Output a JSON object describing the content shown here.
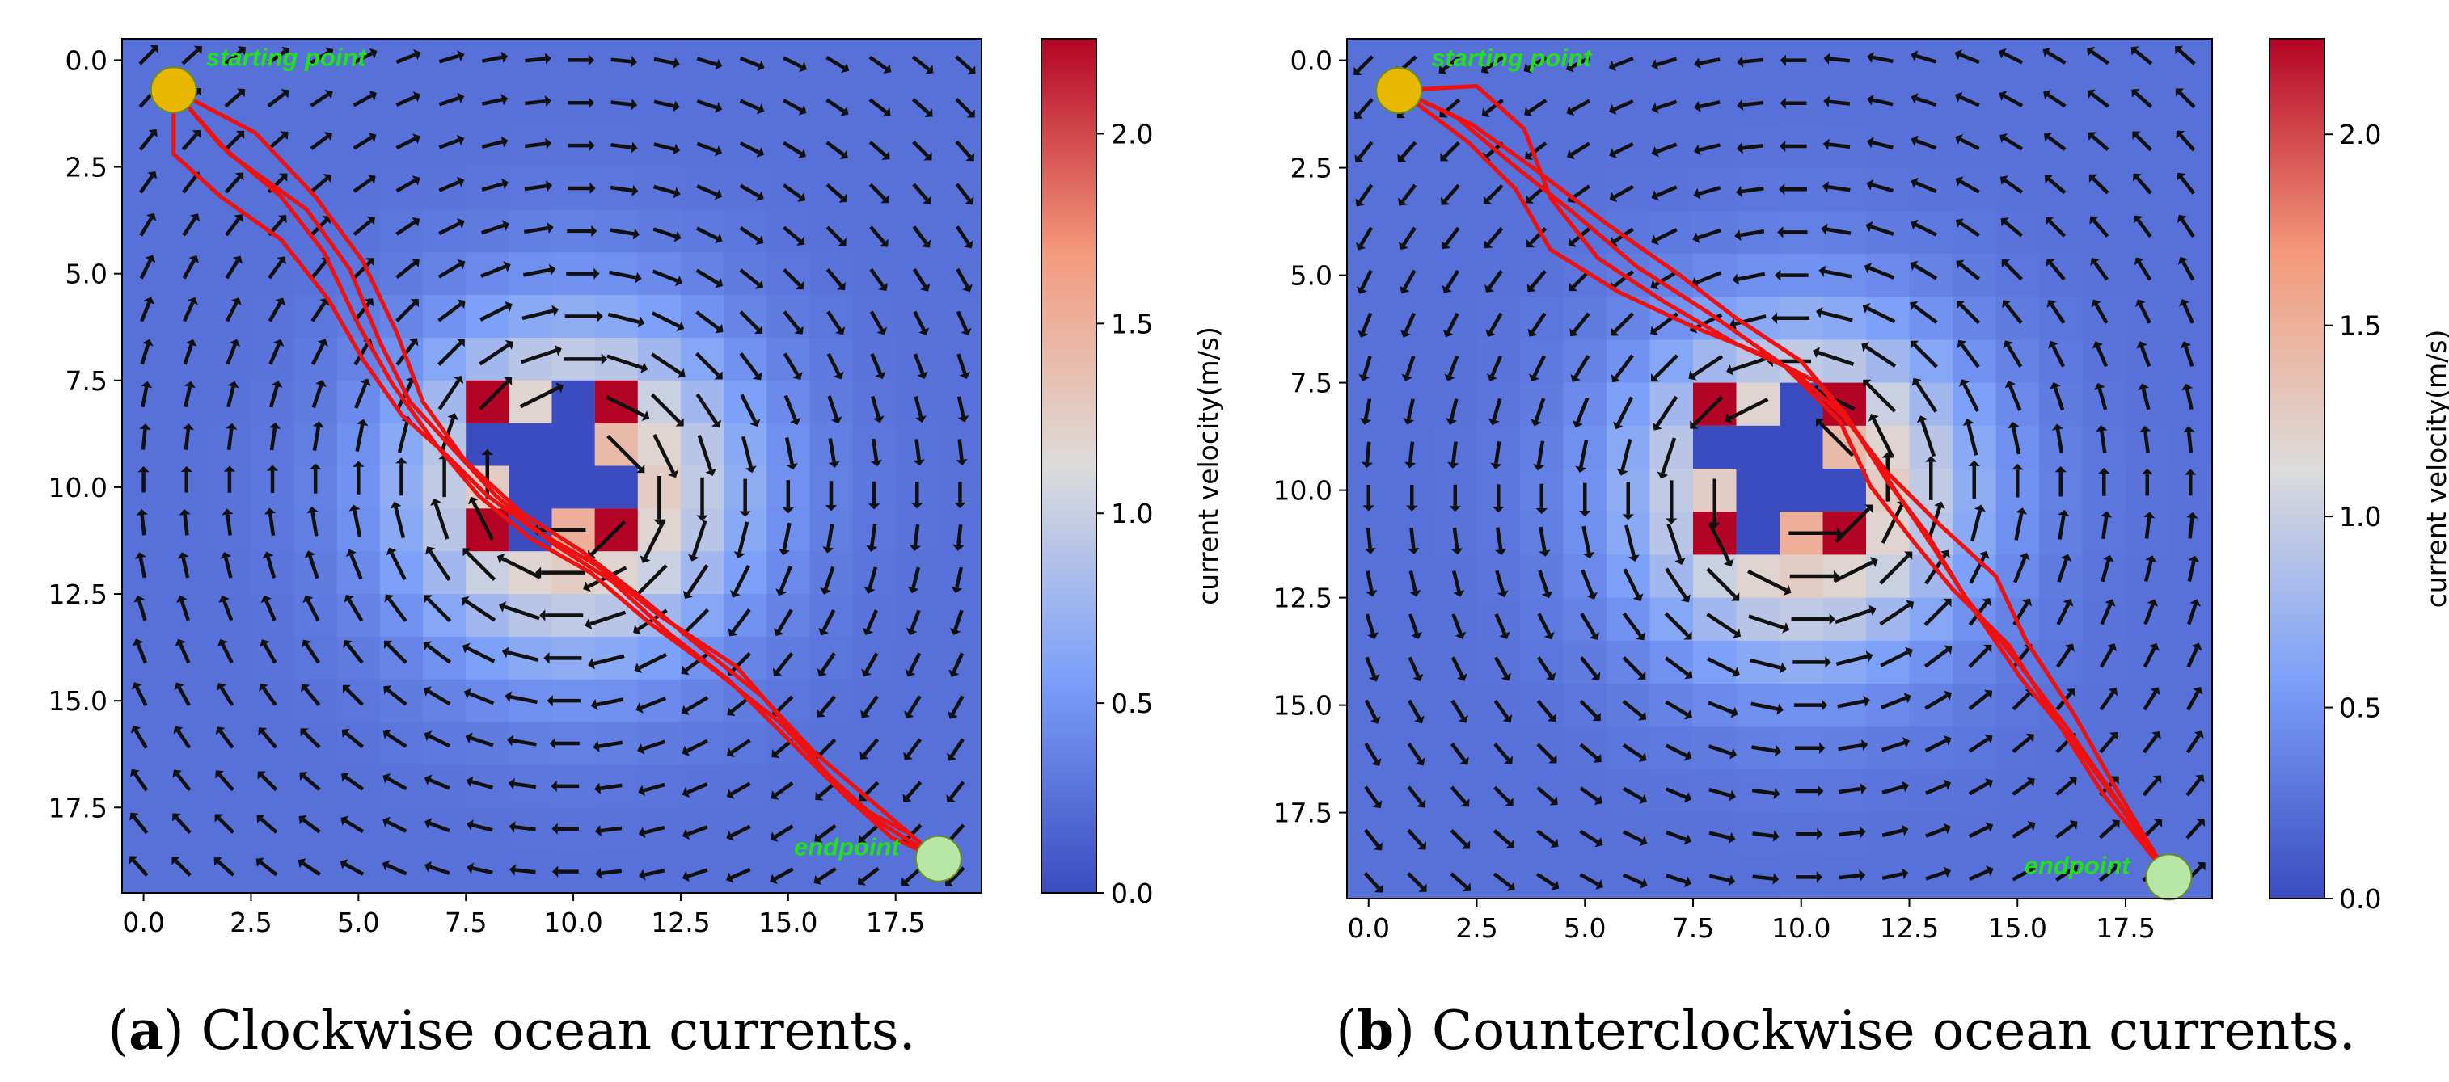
{
  "chart_data": [
    {
      "type": "heatmap",
      "caption_letter": "a",
      "caption_text": " Clockwise ocean currents.",
      "current_direction": "clockwise",
      "xlim": [
        -0.5,
        19.5
      ],
      "ylim": [
        19.5,
        -0.5
      ],
      "xticks": [
        "0.0",
        "2.5",
        "5.0",
        "7.5",
        "10.0",
        "12.5",
        "15.0",
        "17.5"
      ],
      "yticks": [
        "0.0",
        "2.5",
        "5.0",
        "7.5",
        "10.0",
        "12.5",
        "15.0",
        "17.5"
      ],
      "colorbar": {
        "label": "current velocity(m/s)",
        "range": [
          0.0,
          2.25
        ],
        "ticks": [
          "0.0",
          "0.5",
          "1.0",
          "1.5",
          "2.0"
        ],
        "colormap": "coolwarm"
      },
      "vortex_center": [
        10,
        10
      ],
      "obstacle_cells": [
        [
          9,
          9
        ],
        [
          10,
          9
        ],
        [
          9,
          10
        ],
        [
          10,
          10
        ],
        [
          10,
          8
        ],
        [
          9,
          11
        ],
        [
          8,
          9
        ],
        [
          11,
          10
        ]
      ],
      "markers": [
        {
          "label": "starting point",
          "x": 0.7,
          "y": 0.7,
          "color": "#e8b800"
        },
        {
          "label": "endpoint",
          "x": 18.5,
          "y": 18.7,
          "color": "#b8e6a4"
        }
      ],
      "paths": [
        {
          "color": "#ee1111",
          "points": [
            [
              0.7,
              0.7
            ],
            [
              0.7,
              2.2
            ],
            [
              1.8,
              3.2
            ],
            [
              3.2,
              4.2
            ],
            [
              4.3,
              5.6
            ],
            [
              5.1,
              7.0
            ],
            [
              6.0,
              8.3
            ],
            [
              7.0,
              9.2
            ],
            [
              8.0,
              10.2
            ],
            [
              9.1,
              11.0
            ],
            [
              10.5,
              11.8
            ],
            [
              12.0,
              13.0
            ],
            [
              13.8,
              14.2
            ],
            [
              15.0,
              15.6
            ],
            [
              16.3,
              17.2
            ],
            [
              17.4,
              18.2
            ],
            [
              18.5,
              18.7
            ]
          ]
        },
        {
          "color": "#ee1111",
          "points": [
            [
              0.7,
              0.7
            ],
            [
              1.8,
              2.0
            ],
            [
              3.2,
              3.2
            ],
            [
              4.2,
              4.5
            ],
            [
              5.0,
              6.2
            ],
            [
              5.8,
              7.6
            ],
            [
              6.8,
              9.0
            ],
            [
              7.8,
              10.2
            ],
            [
              9.0,
              11.2
            ],
            [
              10.4,
              12.0
            ],
            [
              11.8,
              13.2
            ],
            [
              13.3,
              14.3
            ],
            [
              14.8,
              15.5
            ],
            [
              16.0,
              16.8
            ],
            [
              17.2,
              17.9
            ],
            [
              18.5,
              18.7
            ]
          ]
        },
        {
          "color": "#ee1111",
          "points": [
            [
              0.7,
              0.7
            ],
            [
              2.0,
              2.2
            ],
            [
              3.8,
              3.5
            ],
            [
              4.8,
              4.9
            ],
            [
              5.5,
              6.6
            ],
            [
              6.2,
              8.0
            ],
            [
              7.2,
              9.1
            ],
            [
              8.2,
              10.2
            ],
            [
              9.5,
              11.3
            ],
            [
              10.9,
              12.2
            ],
            [
              12.2,
              13.4
            ],
            [
              13.6,
              14.5
            ],
            [
              15.0,
              15.9
            ],
            [
              16.5,
              17.4
            ],
            [
              17.8,
              18.1
            ],
            [
              18.5,
              18.7
            ]
          ]
        },
        {
          "color": "#ee1111",
          "points": [
            [
              0.7,
              0.7
            ],
            [
              2.6,
              1.7
            ],
            [
              4.0,
              3.2
            ],
            [
              5.1,
              4.7
            ],
            [
              5.9,
              6.4
            ],
            [
              6.5,
              8.0
            ],
            [
              7.5,
              9.4
            ],
            [
              8.8,
              10.6
            ],
            [
              10.2,
              11.5
            ],
            [
              11.6,
              12.6
            ],
            [
              12.9,
              13.7
            ],
            [
              14.4,
              14.9
            ],
            [
              15.6,
              16.2
            ],
            [
              17.0,
              17.4
            ],
            [
              18.5,
              18.7
            ]
          ]
        }
      ]
    },
    {
      "type": "heatmap",
      "caption_letter": "b",
      "caption_text": " Counterclockwise ocean currents.",
      "current_direction": "counterclockwise",
      "xlim": [
        -0.5,
        19.5
      ],
      "ylim": [
        19.5,
        -0.5
      ],
      "xticks": [
        "0.0",
        "2.5",
        "5.0",
        "7.5",
        "10.0",
        "12.5",
        "15.0",
        "17.5"
      ],
      "yticks": [
        "0.0",
        "2.5",
        "5.0",
        "7.5",
        "10.0",
        "12.5",
        "15.0",
        "17.5"
      ],
      "colorbar": {
        "label": "current velocity(m/s)",
        "range": [
          0.0,
          2.25
        ],
        "ticks": [
          "0.0",
          "0.5",
          "1.0",
          "1.5",
          "2.0"
        ],
        "colormap": "coolwarm"
      },
      "vortex_center": [
        10,
        10
      ],
      "obstacle_cells": [
        [
          9,
          9
        ],
        [
          10,
          9
        ],
        [
          9,
          10
        ],
        [
          10,
          10
        ],
        [
          10,
          8
        ],
        [
          9,
          11
        ],
        [
          8,
          9
        ],
        [
          11,
          10
        ]
      ],
      "markers": [
        {
          "label": "starting point",
          "x": 0.7,
          "y": 0.7,
          "color": "#e8b800"
        },
        {
          "label": "endpoint",
          "x": 18.5,
          "y": 19.0,
          "color": "#b8e6a4"
        }
      ],
      "paths": [
        {
          "color": "#ee1111",
          "points": [
            [
              0.7,
              0.7
            ],
            [
              2.5,
              0.6
            ],
            [
              3.6,
              1.6
            ],
            [
              4.2,
              3.2
            ],
            [
              5.3,
              4.6
            ],
            [
              6.8,
              5.6
            ],
            [
              8.5,
              6.6
            ],
            [
              9.8,
              7.2
            ],
            [
              11.0,
              8.3
            ],
            [
              12.0,
              9.6
            ],
            [
              13.2,
              10.8
            ],
            [
              14.5,
              12.0
            ],
            [
              15.2,
              13.5
            ],
            [
              16.3,
              15.2
            ],
            [
              17.2,
              16.8
            ],
            [
              18.5,
              19.0
            ]
          ]
        },
        {
          "color": "#ee1111",
          "points": [
            [
              0.7,
              0.7
            ],
            [
              2.4,
              1.5
            ],
            [
              3.8,
              2.5
            ],
            [
              5.5,
              3.8
            ],
            [
              7.2,
              5.0
            ],
            [
              8.5,
              6.0
            ],
            [
              10.0,
              7.0
            ],
            [
              11.0,
              8.2
            ],
            [
              12.0,
              9.8
            ],
            [
              12.9,
              11.0
            ],
            [
              13.8,
              12.5
            ],
            [
              15.0,
              14.0
            ],
            [
              16.2,
              15.6
            ],
            [
              17.3,
              17.2
            ],
            [
              18.5,
              19.0
            ]
          ]
        },
        {
          "color": "#ee1111",
          "points": [
            [
              0.7,
              0.7
            ],
            [
              2.3,
              1.9
            ],
            [
              3.4,
              3.0
            ],
            [
              4.2,
              4.4
            ],
            [
              5.8,
              5.4
            ],
            [
              7.5,
              6.2
            ],
            [
              9.0,
              6.8
            ],
            [
              10.4,
              7.5
            ],
            [
              11.4,
              8.8
            ],
            [
              12.3,
              10.2
            ],
            [
              13.1,
              11.4
            ],
            [
              14.0,
              12.8
            ],
            [
              15.1,
              14.4
            ],
            [
              16.4,
              16.0
            ],
            [
              17.4,
              17.4
            ],
            [
              18.5,
              19.0
            ]
          ]
        },
        {
          "color": "#ee1111",
          "points": [
            [
              0.7,
              0.7
            ],
            [
              2.0,
              1.3
            ],
            [
              3.3,
              2.4
            ],
            [
              4.8,
              3.6
            ],
            [
              6.2,
              4.8
            ],
            [
              7.9,
              5.9
            ],
            [
              9.6,
              7.1
            ],
            [
              10.9,
              8.4
            ],
            [
              11.6,
              9.9
            ],
            [
              12.6,
              11.2
            ],
            [
              13.5,
              12.3
            ],
            [
              14.8,
              13.6
            ],
            [
              15.8,
              15.2
            ],
            [
              17.0,
              17.1
            ],
            [
              18.5,
              19.0
            ]
          ]
        }
      ]
    }
  ]
}
